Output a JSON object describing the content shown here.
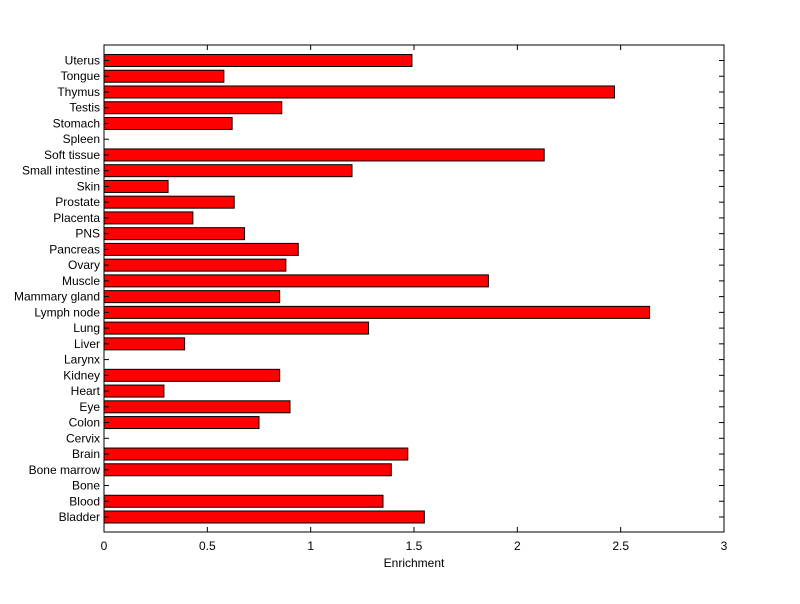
{
  "chart_data": {
    "type": "bar",
    "orientation": "horizontal",
    "title": "",
    "xlabel": "Enrichment",
    "ylabel": "",
    "xlim": [
      0,
      3
    ],
    "xticks": [
      "0",
      "0.5",
      "1",
      "1.5",
      "2",
      "2.5",
      "3"
    ],
    "grid": false,
    "legend": "none",
    "bar_color": "#ff0000",
    "edge_color": "#000000",
    "categories": [
      "Uterus",
      "Tongue",
      "Thymus",
      "Testis",
      "Stomach",
      "Spleen",
      "Soft tissue",
      "Small intestine",
      "Skin",
      "Prostate",
      "Placenta",
      "PNS",
      "Pancreas",
      "Ovary",
      "Muscle",
      "Mammary gland",
      "Lymph node",
      "Lung",
      "Liver",
      "Larynx",
      "Kidney",
      "Heart",
      "Eye",
      "Colon",
      "Cervix",
      "Brain",
      "Bone marrow",
      "Bone",
      "Blood",
      "Bladder"
    ],
    "values": [
      1.49,
      0.58,
      2.47,
      0.86,
      0.62,
      0,
      2.13,
      1.2,
      0.31,
      0.63,
      0.43,
      0.68,
      0.94,
      0.88,
      1.86,
      0.85,
      2.64,
      1.28,
      0.39,
      0,
      0.85,
      0.29,
      0.9,
      0.75,
      0,
      1.47,
      1.39,
      0,
      1.35,
      1.55
    ]
  }
}
